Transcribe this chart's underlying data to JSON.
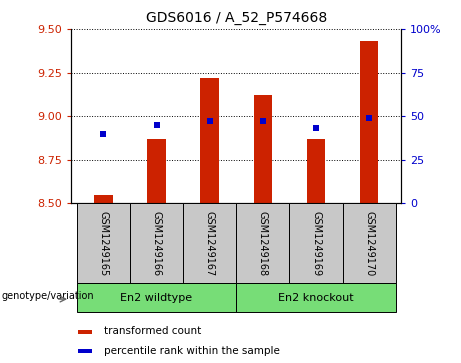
{
  "title": "GDS6016 / A_52_P574668",
  "samples": [
    "GSM1249165",
    "GSM1249166",
    "GSM1249167",
    "GSM1249168",
    "GSM1249169",
    "GSM1249170"
  ],
  "red_values": [
    8.55,
    8.87,
    9.22,
    9.12,
    8.87,
    9.43
  ],
  "blue_percentiles": [
    40,
    45,
    47,
    47,
    43,
    49
  ],
  "ylim_left": [
    8.5,
    9.5
  ],
  "ylim_right": [
    0,
    100
  ],
  "yticks_left": [
    8.5,
    8.75,
    9.0,
    9.25,
    9.5
  ],
  "yticks_right": [
    0,
    25,
    50,
    75,
    100
  ],
  "groups": [
    {
      "label": "En2 wildtype",
      "indices": [
        0,
        1,
        2
      ],
      "color": "#77DD77"
    },
    {
      "label": "En2 knockout",
      "indices": [
        3,
        4,
        5
      ],
      "color": "#77DD77"
    }
  ],
  "bar_color": "#CC2200",
  "marker_color": "#0000CC",
  "bar_bottom": 8.5,
  "bar_width": 0.35,
  "grid_color": "#000000",
  "bg_color": "#ffffff",
  "tick_area_color": "#C8C8C8",
  "group_label": "genotype/variation",
  "legend_red": "transformed count",
  "legend_blue": "percentile rank within the sample",
  "left_tick_color": "#CC2200",
  "right_tick_color": "#0000CC",
  "title_fontsize": 10,
  "tick_fontsize": 8,
  "sample_fontsize": 7,
  "legend_fontsize": 7.5
}
